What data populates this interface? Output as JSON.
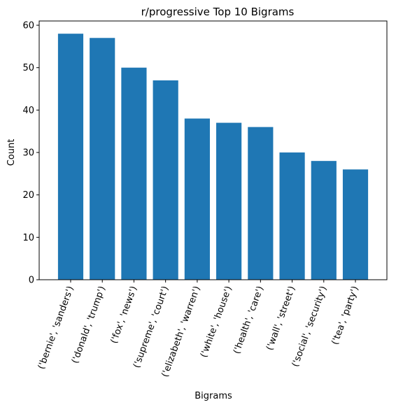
{
  "chart_data": {
    "type": "bar",
    "title": "r/progressive Top 10 Bigrams",
    "xlabel": "Bigrams",
    "ylabel": "Count",
    "categories": [
      "('bernie', 'sanders')",
      "('donald', 'trump')",
      "('fox', 'news')",
      "('supreme', 'court')",
      "('elizabeth', 'warren')",
      "('white', 'house')",
      "('health', 'care')",
      "('wall', 'street')",
      "('social', 'security')",
      "('tea', 'party')"
    ],
    "values": [
      58,
      57,
      50,
      47,
      38,
      37,
      36,
      30,
      28,
      26
    ],
    "ylim": [
      0,
      61
    ],
    "yticks": [
      0,
      10,
      20,
      30,
      40,
      50,
      60
    ],
    "bar_color": "#1f77b4",
    "grid": false,
    "legend": false
  }
}
